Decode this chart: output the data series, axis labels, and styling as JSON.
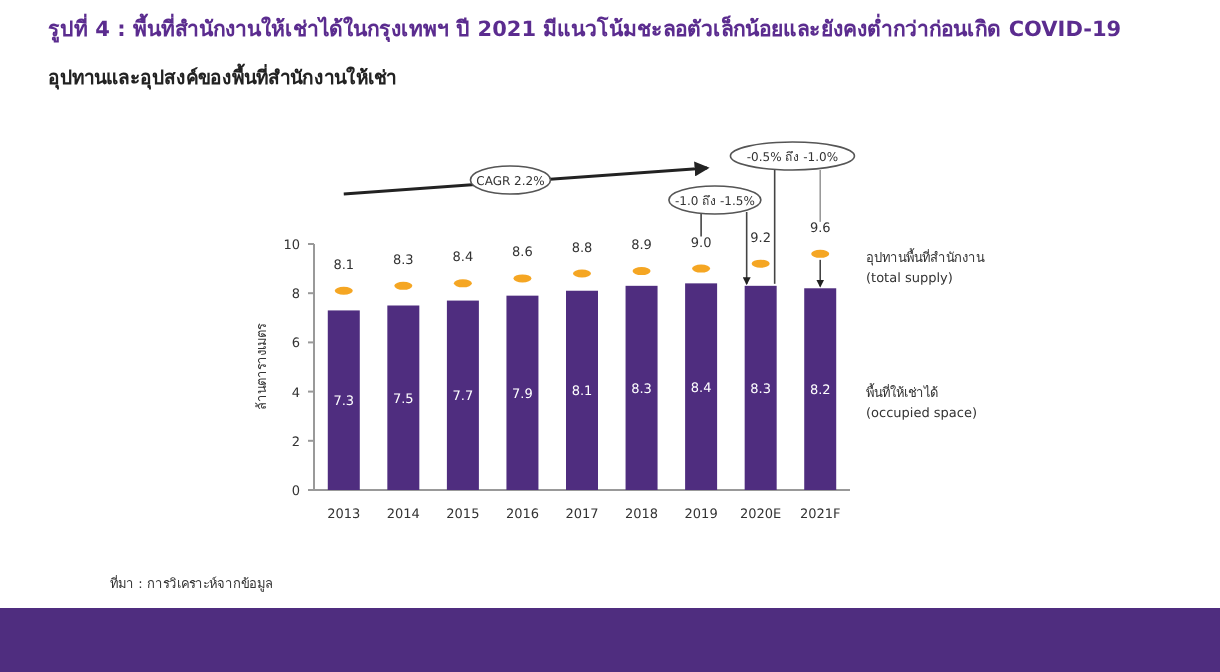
{
  "chart_data": {
    "type": "bar",
    "title": "รูปที่ 4 : พื้นที่สำนักงานให้เช่าได้ในกรุงเทพฯ ปี 2021 มีแนวโน้มชะลอตัวเล็กน้อยและยังคงต่ำกว่าก่อนเกิด COVID-19",
    "subtitle": "อุปทานและอุปสงค์ของพื้นที่สำนักงานให้เช่า",
    "ylabel": "ล้านตารางเมตร",
    "categories": [
      "2013",
      "2014",
      "2015",
      "2016",
      "2017",
      "2018",
      "2019",
      "2020E",
      "2021F"
    ],
    "series": [
      {
        "name": "พื้นที่ให้เช่าได้ (occupied space)",
        "color": "#4f2d7f",
        "values": [
          7.3,
          7.5,
          7.7,
          7.9,
          8.1,
          8.3,
          8.4,
          8.3,
          8.2
        ],
        "value_labels": [
          "7.3",
          "7.5",
          "7.7",
          "7.9",
          "8.1",
          "8.3",
          "8.4",
          "8.3",
          "8.2"
        ]
      },
      {
        "name": "อุปทานพื้นที่สำนักงาน (total supply)",
        "type": "scatter",
        "color": "#f5a623",
        "values": [
          8.1,
          8.3,
          8.4,
          8.6,
          8.8,
          8.9,
          9.0,
          9.2,
          9.6
        ],
        "value_labels": [
          "8.1",
          "8.3",
          "8.4",
          "8.6",
          "8.8",
          "8.9",
          "9.0",
          "9.2",
          "9.6"
        ]
      }
    ],
    "ylim": [
      0,
      10
    ],
    "yticks": [
      0,
      2,
      4,
      6,
      8,
      10
    ],
    "annotations": [
      "CAGR 2.2%",
      {
        "text": "-1.0 ถึง -1.5%",
        "x": "2020E",
        "y": 8.3
      },
      {
        "text": "-0.5% ถึง -1.0%",
        "x": "2020E",
        "y": 8.3
      },
      "ที่มา : การวิเคราะห์จากข้อมูล",
      "4"
    ]
  }
}
